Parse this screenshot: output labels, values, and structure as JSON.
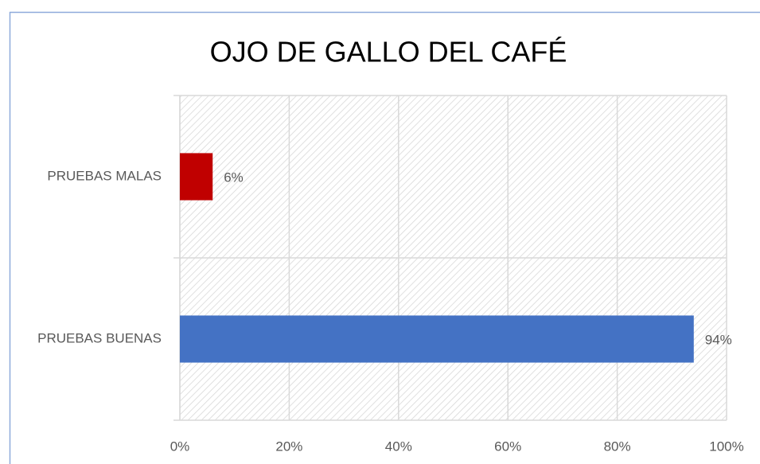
{
  "chart_data": {
    "type": "barh",
    "title": "OJO DE GALLO DEL CAFÉ",
    "categories": [
      "PRUEBAS MALAS",
      "PRUEBAS BUENAS"
    ],
    "values": [
      6,
      94
    ],
    "value_labels": [
      "6%",
      "94%"
    ],
    "colors": [
      "#c00000",
      "#4472c4"
    ],
    "xlim": [
      0,
      100
    ],
    "xticks": [
      {
        "value": 0,
        "label": "0%"
      },
      {
        "value": 20,
        "label": "20%"
      },
      {
        "value": 40,
        "label": "40%"
      },
      {
        "value": 60,
        "label": "60%"
      },
      {
        "value": 80,
        "label": "80%"
      },
      {
        "value": 100,
        "label": "100%"
      }
    ],
    "grid": true
  }
}
